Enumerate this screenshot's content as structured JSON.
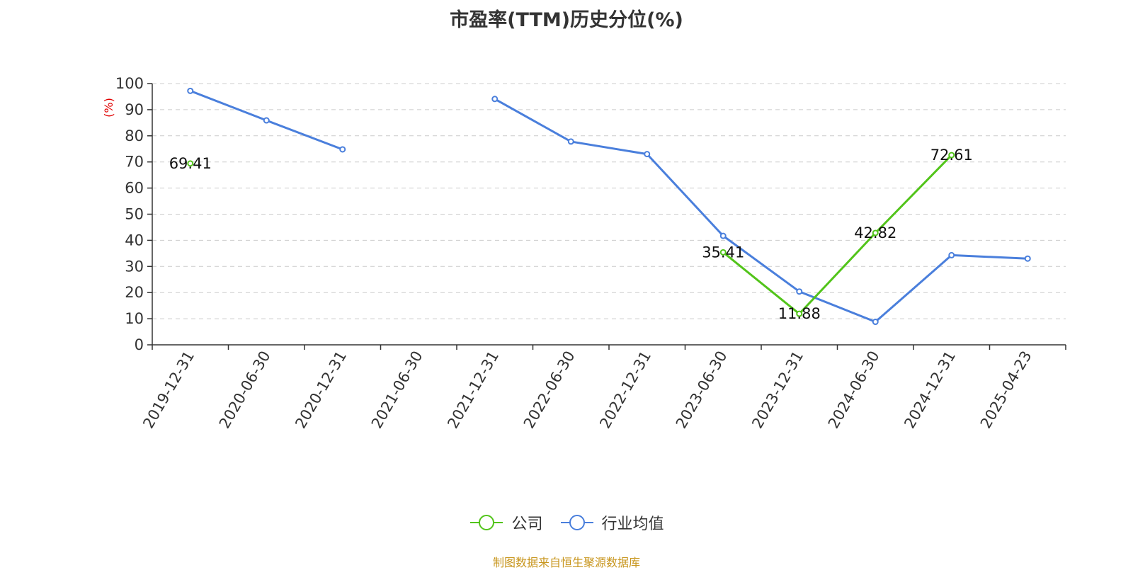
{
  "title": "市盈率(TTM)历史分位(%)",
  "source": "制图数据来自恒生聚源数据库",
  "colors": {
    "company": "#52c41a",
    "industry": "#4a7fdc",
    "axis_label": "#e00000",
    "source": "#c8961e",
    "text": "#333333",
    "grid": "#cccccc"
  },
  "chart_data": {
    "type": "line",
    "title": "市盈率(TTM)历史分位(%)",
    "ylabel": "(%)",
    "xlabel": "",
    "ylim": [
      0,
      100
    ],
    "yticks": [
      0,
      10,
      20,
      30,
      40,
      50,
      60,
      70,
      80,
      90,
      100
    ],
    "grid": true,
    "legend_position": "bottom",
    "categories": [
      "2019-12-31",
      "2020-06-30",
      "2020-12-31",
      "2021-06-30",
      "2021-12-31",
      "2022-06-30",
      "2022-12-31",
      "2023-06-30",
      "2023-12-31",
      "2024-06-30",
      "2024-12-31",
      "2025-04-23"
    ],
    "series": [
      {
        "name": "公司",
        "color": "#52c41a",
        "values": [
          69.41,
          null,
          null,
          null,
          null,
          null,
          null,
          35.41,
          11.88,
          42.82,
          72.61,
          null
        ],
        "labels": [
          "69.41",
          null,
          null,
          null,
          null,
          null,
          null,
          "35.41",
          "11.88",
          "42.82",
          "72.61",
          null
        ]
      },
      {
        "name": "行业均值",
        "color": "#4a7fdc",
        "values": [
          97.2,
          85.9,
          74.8,
          null,
          94.1,
          77.8,
          73.0,
          41.7,
          20.4,
          8.8,
          34.3,
          33.0
        ]
      }
    ]
  }
}
